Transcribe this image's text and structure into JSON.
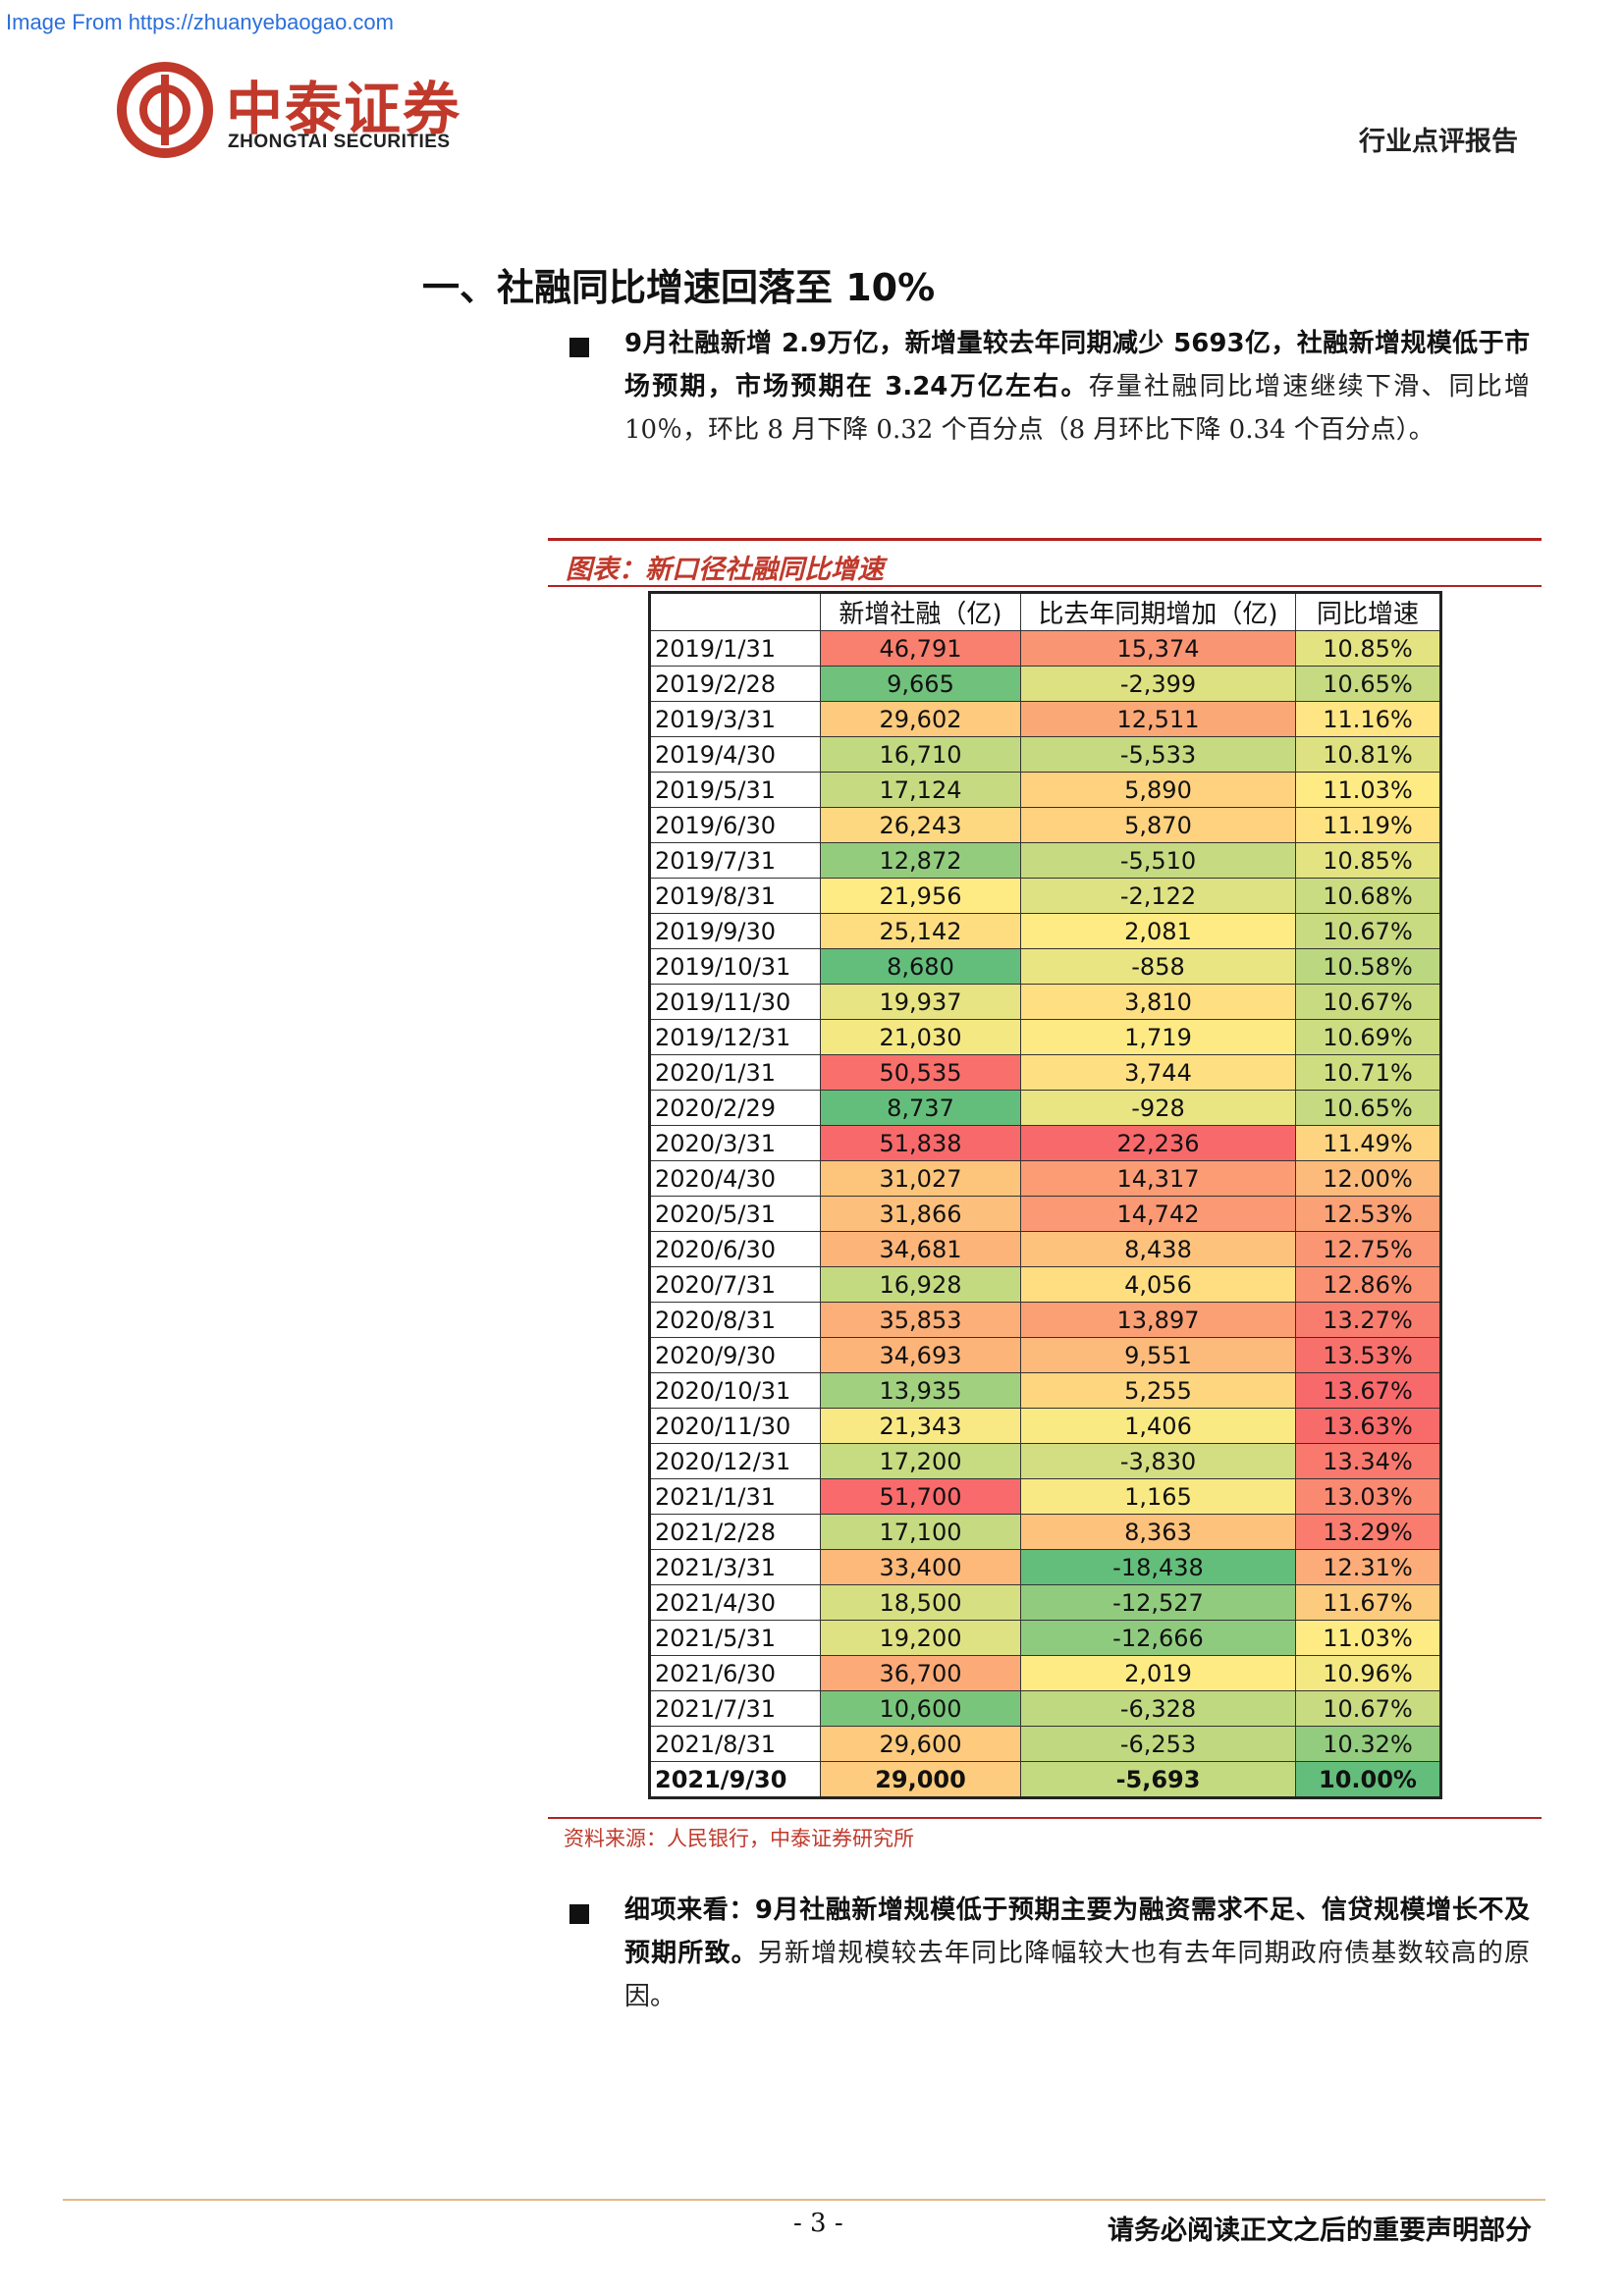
{
  "watermark": "Image From https://zhuanyebaogao.com",
  "brand": {
    "name_cn": "中泰证券",
    "name_en": "ZHONGTAI SECURITIES",
    "color": "#c0392b"
  },
  "report_type": "行业点评报告",
  "section_title": "一、社融同比增速回落至 10%",
  "para1": {
    "bold": "9月社融新增 2.9万亿，新增量较去年同期减少 5693亿，社融新增规模低于市场预期，市场预期在 3.24万亿左右。",
    "normal": "存量社融同比增速继续下滑、同比增 10％，环比 8 月下降 0.32 个百分点（8 月环比下降 0.34 个百分点）。"
  },
  "figure": {
    "title": "图表：新口径社融同比增速",
    "source": "资料来源：人民银行，中泰证券研究所"
  },
  "chart_data": {
    "type": "table",
    "headers": [
      "",
      "新增社融（亿)",
      "比去年同期增加（亿)",
      "同比增速"
    ],
    "rows": [
      [
        "2019/1/31",
        "46,791",
        "15,374",
        "10.85%"
      ],
      [
        "2019/2/28",
        "9,665",
        "-2,399",
        "10.65%"
      ],
      [
        "2019/3/31",
        "29,602",
        "12,511",
        "11.16%"
      ],
      [
        "2019/4/30",
        "16,710",
        "-5,533",
        "10.81%"
      ],
      [
        "2019/5/31",
        "17,124",
        "5,890",
        "11.03%"
      ],
      [
        "2019/6/30",
        "26,243",
        "5,870",
        "11.19%"
      ],
      [
        "2019/7/31",
        "12,872",
        "-5,510",
        "10.85%"
      ],
      [
        "2019/8/31",
        "21,956",
        "-2,122",
        "10.68%"
      ],
      [
        "2019/9/30",
        "25,142",
        "2,081",
        "10.67%"
      ],
      [
        "2019/10/31",
        "8,680",
        "-858",
        "10.58%"
      ],
      [
        "2019/11/30",
        "19,937",
        "3,810",
        "10.67%"
      ],
      [
        "2019/12/31",
        "21,030",
        "1,719",
        "10.69%"
      ],
      [
        "2020/1/31",
        "50,535",
        "3,744",
        "10.71%"
      ],
      [
        "2020/2/29",
        "8,737",
        "-928",
        "10.65%"
      ],
      [
        "2020/3/31",
        "51,838",
        "22,236",
        "11.49%"
      ],
      [
        "2020/4/30",
        "31,027",
        "14,317",
        "12.00%"
      ],
      [
        "2020/5/31",
        "31,866",
        "14,742",
        "12.53%"
      ],
      [
        "2020/6/30",
        "34,681",
        "8,438",
        "12.75%"
      ],
      [
        "2020/7/31",
        "16,928",
        "4,056",
        "12.86%"
      ],
      [
        "2020/8/31",
        "35,853",
        "13,897",
        "13.27%"
      ],
      [
        "2020/9/30",
        "34,693",
        "9,551",
        "13.53%"
      ],
      [
        "2020/10/31",
        "13,935",
        "5,255",
        "13.67%"
      ],
      [
        "2020/11/30",
        "21,343",
        "1,406",
        "13.63%"
      ],
      [
        "2020/12/31",
        "17,200",
        "-3,830",
        "13.34%"
      ],
      [
        "2021/1/31",
        "51,700",
        "1,165",
        "13.03%"
      ],
      [
        "2021/2/28",
        "17,100",
        "8,363",
        "13.29%"
      ],
      [
        "2021/3/31",
        "33,400",
        "-18,438",
        "12.31%"
      ],
      [
        "2021/4/30",
        "18,500",
        "-12,527",
        "11.67%"
      ],
      [
        "2021/5/31",
        "19,200",
        "-12,666",
        "11.03%"
      ],
      [
        "2021/6/30",
        "36,700",
        "2,019",
        "10.96%"
      ],
      [
        "2021/7/31",
        "10,600",
        "-6,328",
        "10.67%"
      ],
      [
        "2021/8/31",
        "29,600",
        "-6,253",
        "10.32%"
      ],
      [
        "2021/9/30",
        "29,000",
        "-5,693",
        "10.00%"
      ]
    ],
    "heatmap_colors": {
      "low": "#63be7b",
      "mid": "#ffeb84",
      "high": "#f8696b"
    }
  },
  "para2": {
    "bold": "细项来看：9月社融新增规模低于预期主要为融资需求不足、信贷规模增长不及预期所致。",
    "normal": "另新增规模较去年同比降幅较大也有去年同期政府债基数较高的原因。"
  },
  "footer": {
    "page": "- 3 -",
    "disclaimer": "请务必阅读正文之后的重要声明部分"
  }
}
